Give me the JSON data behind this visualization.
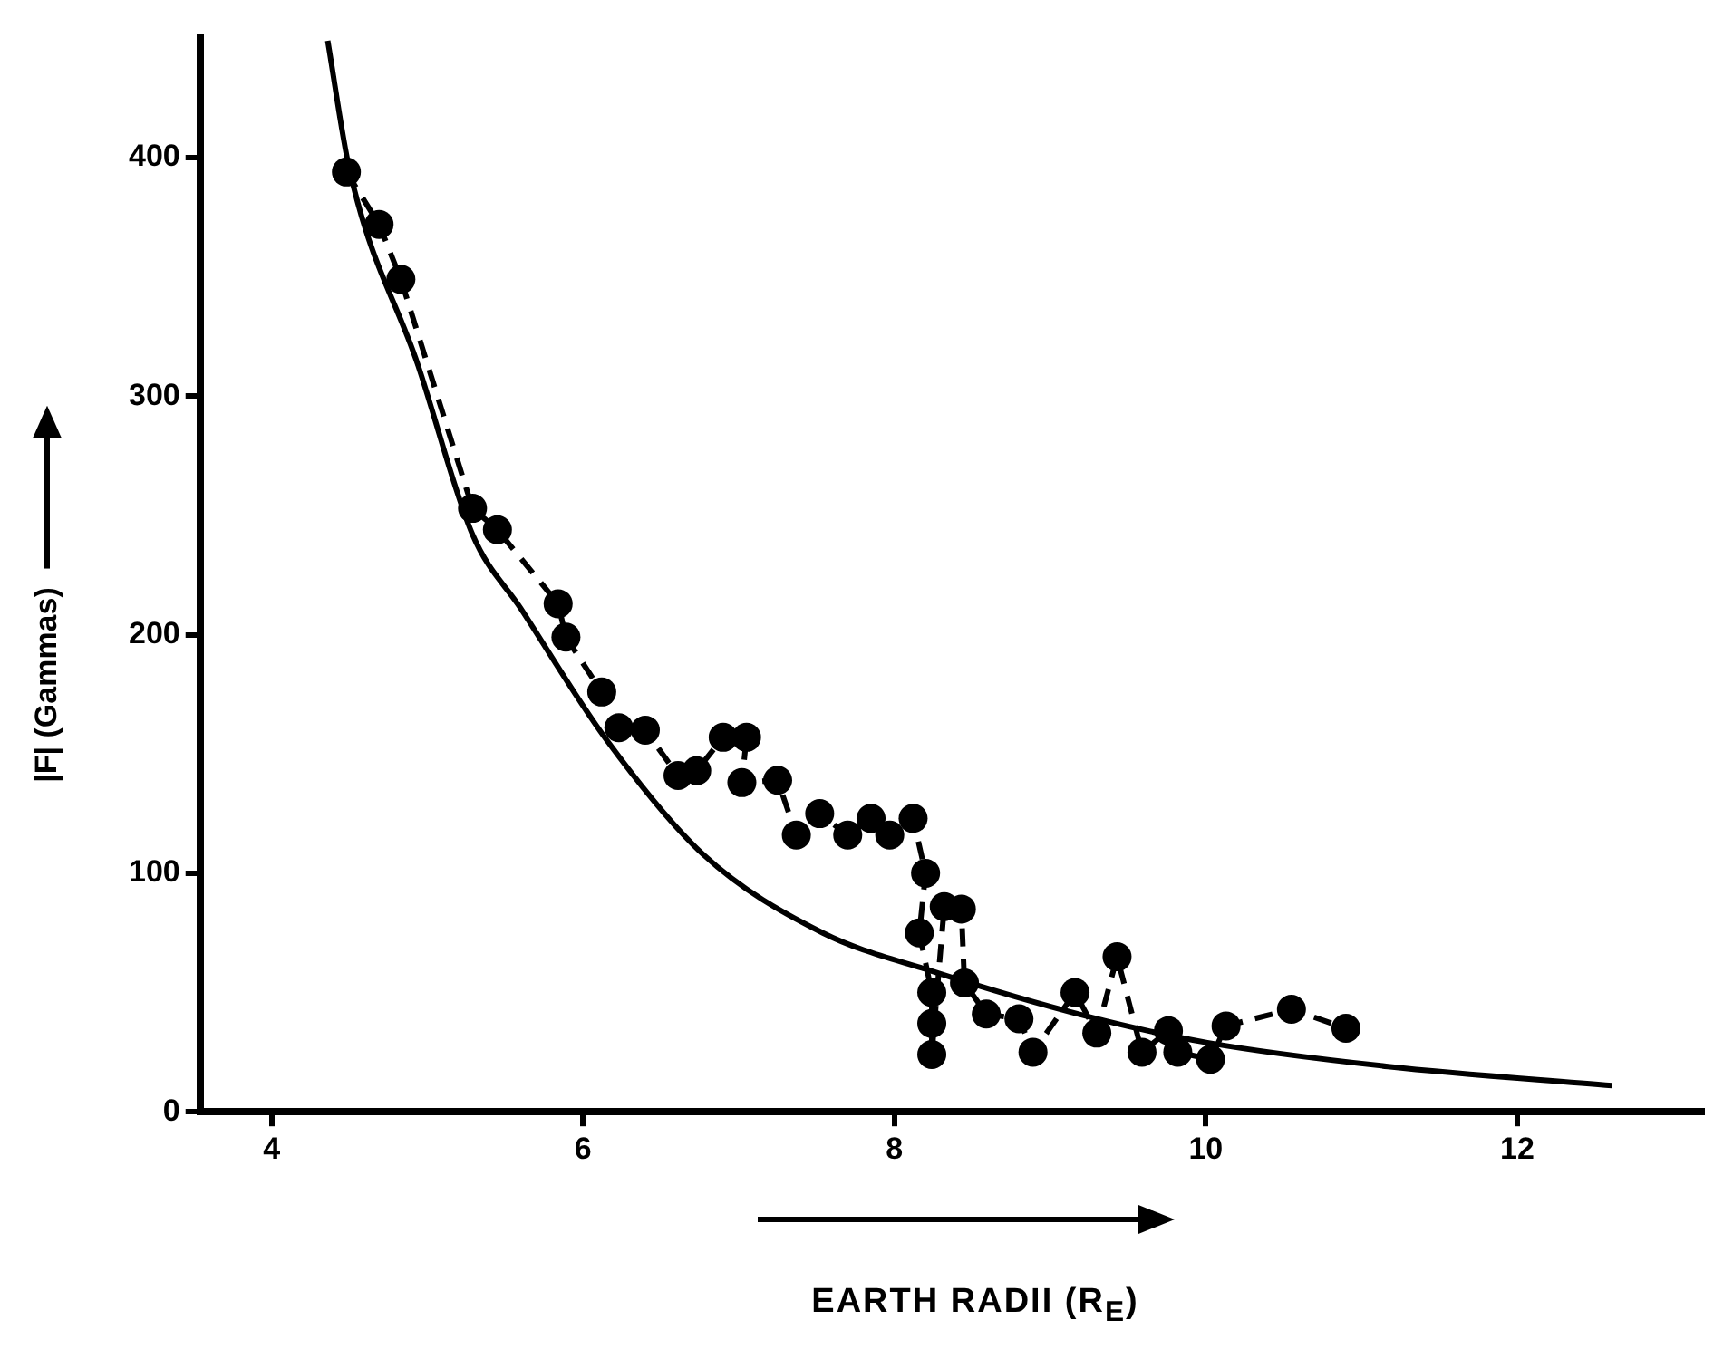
{
  "chart_data": {
    "type": "line",
    "xlabel": "EARTH RADII (R$_{E}$)",
    "ylabel": "|F| (Gammas)",
    "xlim": [
      3.54,
      13.2
    ],
    "ylim": [
      0,
      450
    ],
    "xticks": [
      4,
      6,
      8,
      10,
      12
    ],
    "yticks": [
      0,
      100,
      200,
      300,
      400
    ],
    "grid": false,
    "legend": false,
    "series": [
      {
        "type": "line",
        "color": "#000000",
        "marker": "circle",
        "line_style": "dashed",
        "x": [
          4.48,
          4.69,
          4.83,
          5.29,
          5.45,
          5.84,
          5.89,
          6.12,
          6.23,
          6.4,
          6.61,
          6.73,
          6.9,
          7.05,
          7.02,
          7.25,
          7.37,
          7.52,
          7.7,
          7.85,
          7.97,
          8.12,
          8.2,
          8.16,
          8.24,
          8.24,
          8.24,
          8.32,
          8.43,
          8.45,
          8.59,
          8.8,
          8.89,
          9.16,
          9.3,
          9.43,
          9.59,
          9.76,
          9.82,
          10.03,
          10.13,
          10.55,
          10.9
        ],
        "values": [
          394,
          372,
          349,
          253,
          244,
          213,
          199,
          176,
          161,
          160,
          141,
          143,
          157,
          157,
          138,
          139,
          116,
          125,
          116,
          123,
          116,
          123,
          100,
          75,
          50,
          37,
          24,
          86,
          85,
          54,
          41,
          39,
          25,
          50,
          33,
          65,
          25,
          34,
          25,
          22,
          36,
          43,
          35
        ]
      },
      {
        "type": "line",
        "color": "#000000",
        "marker": "none",
        "line_style": "solid",
        "x": [
          4.36,
          4.5,
          4.94,
          5.29,
          5.6,
          6.15,
          6.77,
          7.54,
          8.24,
          9.24,
          10.01,
          11.17,
          12.61
        ],
        "values": [
          449,
          395,
          313,
          242,
          211,
          156,
          108,
          75,
          59,
          40,
          29,
          19,
          11
        ]
      }
    ]
  }
}
